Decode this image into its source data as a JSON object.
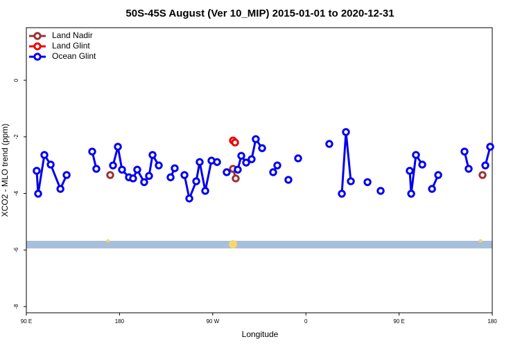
{
  "chart_data": {
    "type": "line",
    "title": "50S-45S August (Ver 10_MIP)   2015-01-01 to 2020-12-31",
    "x_label": "Longitude",
    "y_label": "XCO2 - MLO trend (ppm)",
    "xlim": [
      90,
      540
    ],
    "ylim": [
      -8.22,
      1.86
    ],
    "xticks": [
      {
        "value": 90,
        "label": "90 E"
      },
      180,
      {
        "value": 270,
        "label": "90 W"
      },
      {
        "value": 360,
        "label": "0"
      },
      {
        "value": 450,
        "label": "90 E"
      },
      {
        "value": 540,
        "label": "180"
      }
    ],
    "yticks": [
      0,
      -2,
      -4,
      -6,
      -8
    ],
    "legend": "top-left",
    "series": [
      {
        "name": "Land Nadir",
        "color": "#993333",
        "x": [
          171.0,
          null,
          289.6,
          292.2,
          null,
          530.6
        ],
        "values": [
          -3.35,
          null,
          -3.13,
          -3.47,
          null,
          -3.35
        ]
      },
      {
        "name": "Land Glint",
        "color": "#ee0000",
        "x": [
          289.6,
          291.6
        ],
        "values": [
          -2.13,
          -2.2
        ]
      },
      {
        "name": "Ocean Glint",
        "color": "#0000ee",
        "x": [
          100.0,
          101.4,
          107.4,
          113.5,
          122.9,
          128.9,
          null,
          153.6,
          157.6,
          null,
          173.7,
          178.4,
          182.4,
          189.1,
          193.1,
          197.1,
          203.8,
          208.5,
          211.9,
          217.9,
          null,
          229.3,
          233.3,
          null,
          242.7,
          247.4,
          254.1,
          257.4,
          262.8,
          268.8,
          274.2,
          null,
          283.5,
          null,
          294.2,
          297.6,
          302.3,
          307.6,
          311.6,
          317.7,
          null,
          328.4,
          332.4,
          null,
          343.1,
          null,
          352.5,
          null,
          382.6,
          null,
          394.7,
          398.7,
          403.4,
          null,
          419.5,
          null,
          432.2,
          null,
          460.3,
          461.7,
          466.3,
          472.4,
          null,
          481.8,
          487.8,
          null,
          513.2,
          517.2,
          null,
          533.3,
          538.0
        ],
        "values": [
          -3.2,
          -4.01,
          -2.64,
          -2.98,
          -3.84,
          -3.35,
          null,
          -2.52,
          -3.13,
          null,
          -3.01,
          -2.35,
          -3.16,
          -3.43,
          -3.47,
          -3.16,
          -3.6,
          -3.38,
          -2.64,
          -3.01,
          null,
          -3.43,
          -3.11,
          null,
          -3.35,
          -4.18,
          -3.57,
          -2.89,
          -3.91,
          -2.84,
          -2.89,
          null,
          -3.25,
          null,
          -3.16,
          -2.67,
          -2.91,
          -2.79,
          -2.08,
          -2.4,
          null,
          -3.25,
          -3.01,
          null,
          -3.52,
          null,
          -2.76,
          null,
          -2.25,
          null,
          -4.01,
          -1.83,
          -3.57,
          null,
          -3.6,
          null,
          -3.91,
          null,
          -3.2,
          -4.01,
          -2.64,
          -2.98,
          null,
          -3.84,
          -3.35,
          null,
          -2.52,
          -3.13,
          null,
          -3.01,
          -2.35
        ]
      }
    ]
  }
}
